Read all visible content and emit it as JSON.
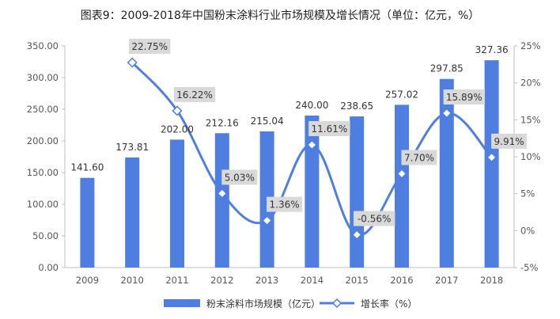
{
  "chart_data": {
    "type": "bar",
    "title": "图表9：2009-2018年中国粉末涂料行业市场规模及增长情况（单位：亿元，%）",
    "categories": [
      "2009",
      "2010",
      "2011",
      "2012",
      "2013",
      "2014",
      "2015",
      "2016",
      "2017",
      "2018"
    ],
    "series": [
      {
        "name": "粉末涂料市场规模（亿元）",
        "type": "bar",
        "axis": "left",
        "values": [
          141.6,
          173.81,
          202.0,
          212.16,
          215.04,
          240.0,
          238.65,
          257.02,
          297.85,
          327.36
        ],
        "labels": [
          "141.60",
          "173.81",
          "202.00",
          "212.16",
          "215.04",
          "240.00",
          "238.65",
          "257.02",
          "297.85",
          "327.36"
        ]
      },
      {
        "name": "增长率（%）",
        "type": "line",
        "axis": "right",
        "values": [
          null,
          22.75,
          16.22,
          5.03,
          1.36,
          11.61,
          -0.56,
          7.7,
          15.89,
          9.91
        ],
        "labels": [
          "",
          "22.75%",
          "16.22%",
          "5.03%",
          "1.36%",
          "11.61%",
          "-0.56%",
          "7.70%",
          "15.89%",
          "9.91%"
        ]
      }
    ],
    "y_left": {
      "range": [
        0,
        350
      ],
      "ticks": [
        "0.00",
        "50.00",
        "100.00",
        "150.00",
        "200.00",
        "250.00",
        "300.00",
        "350.00"
      ]
    },
    "y_right": {
      "range": [
        -5,
        25
      ],
      "ticks": [
        "-5%",
        "0%",
        "5%",
        "10%",
        "15%",
        "20%",
        "25%"
      ]
    },
    "grid": false,
    "legend": "bottom",
    "colors": {
      "bar": "#4E7FE0",
      "line": "#4E7FE0",
      "label_box": "#D9D9D9",
      "axis": "#BFBFBF"
    }
  }
}
